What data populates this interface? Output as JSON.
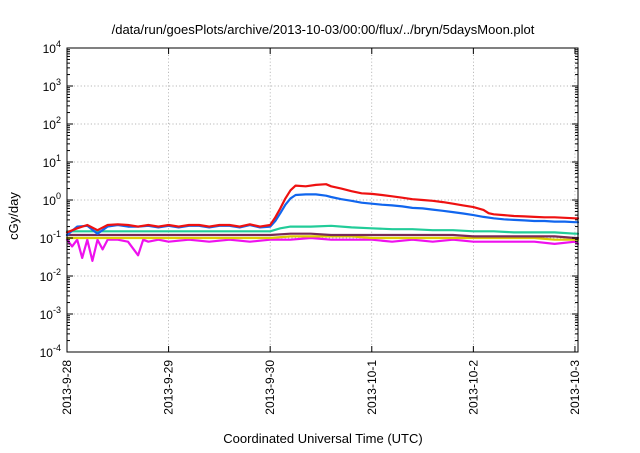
{
  "chart_data": {
    "type": "line",
    "title": "/data/run/goesPlots/archive/2013-10-03/00:00/flux/../bryn/5daysMoon.plot",
    "xlabel": "Coordinated Universal Time (UTC)",
    "ylabel": "cGy/day",
    "xlim": [
      0,
      5.03
    ],
    "ylim": [
      0.0001,
      10000
    ],
    "y_scale": "log",
    "grid": true,
    "x_tick_positions": [
      0,
      1,
      2,
      3,
      4,
      5
    ],
    "x_tick_labels": [
      "2013-9-28",
      "2013-9-29",
      "2013-9-30",
      "2013-10-1",
      "2013-10-2",
      "2013-10-3"
    ],
    "y_tick_values": [
      0.0001,
      0.001,
      0.01,
      0.1,
      1,
      10,
      100,
      1000,
      10000
    ],
    "y_tick_labels": [
      {
        "base": "10",
        "exp": "-4"
      },
      {
        "base": "10",
        "exp": "-3"
      },
      {
        "base": "10",
        "exp": "-2"
      },
      {
        "base": "10",
        "exp": "-1"
      },
      {
        "base": "10",
        "exp": "0"
      },
      {
        "base": "10",
        "exp": "1"
      },
      {
        "base": "10",
        "exp": "2"
      },
      {
        "base": "10",
        "exp": "3"
      },
      {
        "base": "10",
        "exp": "4"
      }
    ],
    "series": [
      {
        "color": "#ee1111",
        "values": [
          [
            0,
            0.14
          ],
          [
            0.1,
            0.18
          ],
          [
            0.2,
            0.22
          ],
          [
            0.3,
            0.16
          ],
          [
            0.4,
            0.22
          ],
          [
            0.5,
            0.23
          ],
          [
            0.6,
            0.22
          ],
          [
            0.7,
            0.2
          ],
          [
            0.8,
            0.22
          ],
          [
            0.9,
            0.2
          ],
          [
            1.0,
            0.22
          ],
          [
            1.1,
            0.2
          ],
          [
            1.2,
            0.22
          ],
          [
            1.3,
            0.22
          ],
          [
            1.4,
            0.2
          ],
          [
            1.5,
            0.22
          ],
          [
            1.6,
            0.22
          ],
          [
            1.7,
            0.2
          ],
          [
            1.8,
            0.23
          ],
          [
            1.9,
            0.2
          ],
          [
            2.0,
            0.22
          ],
          [
            2.05,
            0.35
          ],
          [
            2.1,
            0.6
          ],
          [
            2.15,
            1.1
          ],
          [
            2.2,
            1.8
          ],
          [
            2.25,
            2.4
          ],
          [
            2.35,
            2.3
          ],
          [
            2.45,
            2.5
          ],
          [
            2.55,
            2.6
          ],
          [
            2.6,
            2.3
          ],
          [
            2.7,
            2.0
          ],
          [
            2.8,
            1.7
          ],
          [
            2.9,
            1.5
          ],
          [
            3.0,
            1.45
          ],
          [
            3.1,
            1.35
          ],
          [
            3.2,
            1.25
          ],
          [
            3.3,
            1.15
          ],
          [
            3.4,
            1.05
          ],
          [
            3.5,
            1.0
          ],
          [
            3.6,
            0.95
          ],
          [
            3.7,
            0.88
          ],
          [
            3.8,
            0.8
          ],
          [
            3.9,
            0.72
          ],
          [
            4.0,
            0.65
          ],
          [
            4.1,
            0.55
          ],
          [
            4.15,
            0.45
          ],
          [
            4.2,
            0.42
          ],
          [
            4.3,
            0.4
          ],
          [
            4.4,
            0.38
          ],
          [
            4.5,
            0.37
          ],
          [
            4.6,
            0.36
          ],
          [
            4.7,
            0.35
          ],
          [
            4.8,
            0.35
          ],
          [
            4.9,
            0.34
          ],
          [
            5.0,
            0.33
          ],
          [
            5.03,
            0.33
          ]
        ]
      },
      {
        "color": "#1166ee",
        "values": [
          [
            0,
            0.12
          ],
          [
            0.1,
            0.2
          ],
          [
            0.2,
            0.21
          ],
          [
            0.3,
            0.13
          ],
          [
            0.4,
            0.2
          ],
          [
            0.5,
            0.22
          ],
          [
            0.6,
            0.2
          ],
          [
            0.7,
            0.2
          ],
          [
            0.8,
            0.21
          ],
          [
            0.9,
            0.19
          ],
          [
            1.0,
            0.21
          ],
          [
            1.1,
            0.19
          ],
          [
            1.2,
            0.21
          ],
          [
            1.3,
            0.21
          ],
          [
            1.4,
            0.19
          ],
          [
            1.5,
            0.21
          ],
          [
            1.6,
            0.21
          ],
          [
            1.7,
            0.19
          ],
          [
            1.8,
            0.22
          ],
          [
            1.9,
            0.19
          ],
          [
            2.0,
            0.2
          ],
          [
            2.05,
            0.28
          ],
          [
            2.1,
            0.45
          ],
          [
            2.15,
            0.75
          ],
          [
            2.2,
            1.1
          ],
          [
            2.25,
            1.35
          ],
          [
            2.35,
            1.4
          ],
          [
            2.45,
            1.4
          ],
          [
            2.55,
            1.3
          ],
          [
            2.6,
            1.2
          ],
          [
            2.7,
            1.05
          ],
          [
            2.8,
            0.95
          ],
          [
            2.9,
            0.85
          ],
          [
            3.0,
            0.8
          ],
          [
            3.1,
            0.75
          ],
          [
            3.2,
            0.72
          ],
          [
            3.3,
            0.68
          ],
          [
            3.4,
            0.62
          ],
          [
            3.5,
            0.6
          ],
          [
            3.6,
            0.56
          ],
          [
            3.7,
            0.52
          ],
          [
            3.8,
            0.48
          ],
          [
            3.9,
            0.44
          ],
          [
            4.0,
            0.4
          ],
          [
            4.1,
            0.36
          ],
          [
            4.2,
            0.33
          ],
          [
            4.3,
            0.31
          ],
          [
            4.4,
            0.3
          ],
          [
            4.5,
            0.29
          ],
          [
            4.6,
            0.28
          ],
          [
            4.7,
            0.28
          ],
          [
            4.8,
            0.27
          ],
          [
            4.9,
            0.27
          ],
          [
            5.0,
            0.26
          ],
          [
            5.03,
            0.26
          ]
        ]
      },
      {
        "color": "#22cc99",
        "values": [
          [
            0,
            0.15
          ],
          [
            0.2,
            0.15
          ],
          [
            0.4,
            0.15
          ],
          [
            0.6,
            0.15
          ],
          [
            0.8,
            0.15
          ],
          [
            1.0,
            0.15
          ],
          [
            1.2,
            0.15
          ],
          [
            1.4,
            0.15
          ],
          [
            1.6,
            0.15
          ],
          [
            1.8,
            0.15
          ],
          [
            2.0,
            0.15
          ],
          [
            2.1,
            0.18
          ],
          [
            2.2,
            0.2
          ],
          [
            2.4,
            0.2
          ],
          [
            2.6,
            0.21
          ],
          [
            2.8,
            0.19
          ],
          [
            3.0,
            0.18
          ],
          [
            3.2,
            0.17
          ],
          [
            3.4,
            0.17
          ],
          [
            3.6,
            0.16
          ],
          [
            3.8,
            0.16
          ],
          [
            4.0,
            0.15
          ],
          [
            4.2,
            0.15
          ],
          [
            4.4,
            0.14
          ],
          [
            4.6,
            0.14
          ],
          [
            4.8,
            0.14
          ],
          [
            5.0,
            0.13
          ],
          [
            5.03,
            0.13
          ]
        ]
      },
      {
        "color": "#7a2a55",
        "values": [
          [
            0,
            0.12
          ],
          [
            0.2,
            0.12
          ],
          [
            0.4,
            0.12
          ],
          [
            0.6,
            0.12
          ],
          [
            0.8,
            0.12
          ],
          [
            1.0,
            0.12
          ],
          [
            1.2,
            0.12
          ],
          [
            1.4,
            0.12
          ],
          [
            1.6,
            0.12
          ],
          [
            1.8,
            0.12
          ],
          [
            2.0,
            0.12
          ],
          [
            2.2,
            0.13
          ],
          [
            2.4,
            0.13
          ],
          [
            2.6,
            0.12
          ],
          [
            2.8,
            0.12
          ],
          [
            3.0,
            0.12
          ],
          [
            3.2,
            0.12
          ],
          [
            3.4,
            0.12
          ],
          [
            3.6,
            0.12
          ],
          [
            3.8,
            0.12
          ],
          [
            4.0,
            0.11
          ],
          [
            4.2,
            0.11
          ],
          [
            4.4,
            0.11
          ],
          [
            4.6,
            0.11
          ],
          [
            4.8,
            0.11
          ],
          [
            5.0,
            0.1
          ],
          [
            5.03,
            0.1
          ]
        ]
      },
      {
        "color": "#ddcc00",
        "values": [
          [
            0,
            0.1
          ],
          [
            0.2,
            0.1
          ],
          [
            0.4,
            0.1
          ],
          [
            0.6,
            0.1
          ],
          [
            0.8,
            0.1
          ],
          [
            1.0,
            0.1
          ],
          [
            1.2,
            0.1
          ],
          [
            1.4,
            0.1
          ],
          [
            1.6,
            0.1
          ],
          [
            1.8,
            0.1
          ],
          [
            2.0,
            0.1
          ],
          [
            2.2,
            0.11
          ],
          [
            2.4,
            0.11
          ],
          [
            2.6,
            0.11
          ],
          [
            2.8,
            0.11
          ],
          [
            3.0,
            0.1
          ],
          [
            3.2,
            0.1
          ],
          [
            3.4,
            0.1
          ],
          [
            3.6,
            0.1
          ],
          [
            3.8,
            0.1
          ],
          [
            4.0,
            0.1
          ],
          [
            4.2,
            0.1
          ],
          [
            4.4,
            0.1
          ],
          [
            4.6,
            0.1
          ],
          [
            4.8,
            0.09
          ],
          [
            5.0,
            0.09
          ],
          [
            5.03,
            0.09
          ]
        ]
      },
      {
        "color": "#ee11ee",
        "values": [
          [
            0,
            0.09
          ],
          [
            0.05,
            0.06
          ],
          [
            0.1,
            0.09
          ],
          [
            0.15,
            0.03
          ],
          [
            0.2,
            0.09
          ],
          [
            0.25,
            0.025
          ],
          [
            0.3,
            0.09
          ],
          [
            0.35,
            0.05
          ],
          [
            0.4,
            0.09
          ],
          [
            0.5,
            0.09
          ],
          [
            0.6,
            0.08
          ],
          [
            0.7,
            0.035
          ],
          [
            0.75,
            0.09
          ],
          [
            0.8,
            0.08
          ],
          [
            0.9,
            0.09
          ],
          [
            1.0,
            0.08
          ],
          [
            1.2,
            0.09
          ],
          [
            1.4,
            0.08
          ],
          [
            1.6,
            0.09
          ],
          [
            1.8,
            0.08
          ],
          [
            2.0,
            0.09
          ],
          [
            2.2,
            0.09
          ],
          [
            2.4,
            0.1
          ],
          [
            2.6,
            0.09
          ],
          [
            2.8,
            0.09
          ],
          [
            3.0,
            0.09
          ],
          [
            3.2,
            0.08
          ],
          [
            3.4,
            0.09
          ],
          [
            3.6,
            0.08
          ],
          [
            3.8,
            0.09
          ],
          [
            4.0,
            0.08
          ],
          [
            4.2,
            0.08
          ],
          [
            4.4,
            0.08
          ],
          [
            4.6,
            0.08
          ],
          [
            4.8,
            0.07
          ],
          [
            5.0,
            0.08
          ],
          [
            5.03,
            0.07
          ]
        ]
      }
    ]
  }
}
